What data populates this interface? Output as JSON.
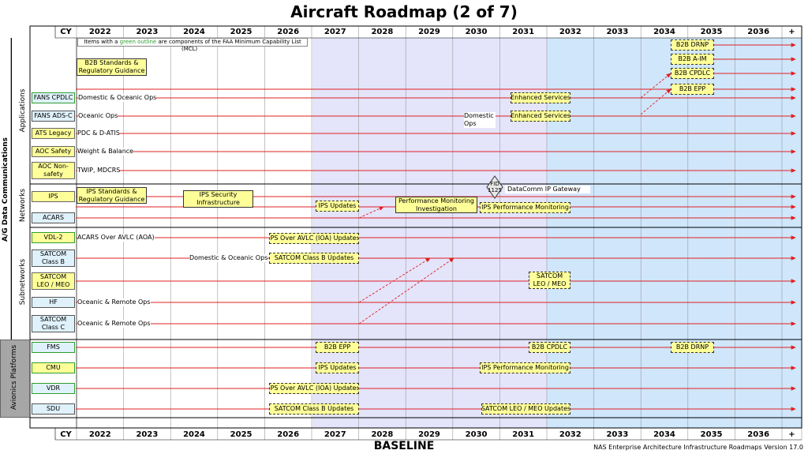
{
  "title": "Aircraft Roadmap (2 of 7)",
  "footer": {
    "baseline": "BASELINE",
    "version": "NAS Enterprise Architecture Infrastructure Roadmaps Version 17.0"
  },
  "header_label": "CY",
  "years": [
    "2022",
    "2023",
    "2024",
    "2025",
    "2026",
    "2027",
    "2028",
    "2029",
    "2030",
    "2031",
    "2032",
    "2033",
    "2034",
    "2035",
    "2036",
    "+"
  ],
  "legend": {
    "prefix": "Items with a ",
    "highlight": "green outline",
    "suffix": " are components of the FAA Minimum Capability List",
    "second": "(MCL)",
    "highlight_color": "#2e9e2e"
  },
  "vertical_labels": {
    "outer": "A/G Data Communications",
    "applications": "Applications",
    "networks": "Networks",
    "subnetworks": "Subnetworks",
    "avionics": "Avionics Platforms"
  },
  "rows": [
    {
      "id": "fans-cpdlc",
      "label": "FANS CPDLC",
      "style": "lbl-bg",
      "desc": "Domestic & Oceanic Ops"
    },
    {
      "id": "fans-adsc",
      "label": "FANS ADS-C",
      "style": "lbl-b",
      "desc": "Oceanic Ops"
    },
    {
      "id": "ats-legacy",
      "label": "ATS Legacy",
      "style": "lbl-y",
      "desc": "PDC & D-ATIS"
    },
    {
      "id": "aoc-safety",
      "label": "AOC Safety",
      "style": "lbl-y",
      "desc": "Weight & Balance"
    },
    {
      "id": "aoc-nonsafety",
      "label": "AOC Non-safety",
      "style": "lbl-y",
      "desc": "TWIP, MDCRS"
    },
    {
      "id": "ips",
      "label": "IPS",
      "style": "lbl-y",
      "desc": ""
    },
    {
      "id": "acars",
      "label": "ACARS",
      "style": "lbl-b",
      "desc": ""
    },
    {
      "id": "vdl2",
      "label": "VDL-2",
      "style": "lbl-g",
      "desc": "ACARS Over AVLC (AOA)"
    },
    {
      "id": "satcom-b",
      "label": "SATCOM Class B",
      "style": "lbl-b",
      "desc": "Domestic & Oceanic Ops"
    },
    {
      "id": "satcom-leo",
      "label": "SATCOM LEO / MEO",
      "style": "lbl-y",
      "desc": ""
    },
    {
      "id": "hf",
      "label": "HF",
      "style": "lbl-b",
      "desc": "Oceanic & Remote Ops"
    },
    {
      "id": "satcom-c",
      "label": "SATCOM Class C",
      "style": "lbl-b",
      "desc": "Oceanic & Remote Ops"
    },
    {
      "id": "fms",
      "label": "FMS",
      "style": "lbl-bg",
      "desc": ""
    },
    {
      "id": "cmu",
      "label": "CMU",
      "style": "lbl-g",
      "desc": ""
    },
    {
      "id": "vdr",
      "label": "VDR",
      "style": "lbl-bg",
      "desc": ""
    },
    {
      "id": "sdu",
      "label": "SDU",
      "style": "lbl-b",
      "desc": ""
    }
  ],
  "items": {
    "b2b_standards": "B2B Standards & Regulatory Guidance",
    "ips_standards": "IPS Standards & Regulatory Guidance",
    "ips_security": "IPS Security Infrastructure",
    "b2b_drnp": "B2B DRNP",
    "b2b_aim": "B2B A-IM",
    "b2b_cpdlc": "B2B CPDLC",
    "b2b_epp": "B2B EPP",
    "enhanced_1": "Enhanced Services",
    "enhanced_2": "Enhanced Services",
    "domestic_ops": "Domestic Ops",
    "fid": "FID 1125",
    "datacomm_gateway": "DataComm IP Gateway",
    "ips_updates_net": "IPS Updates",
    "perf_investigation": "Performance Monitoring Investigation",
    "ips_perf_net": "IPS Performance Monitoring",
    "ips_avlc_sub": "IPS Over AVLC (IOA) Updates",
    "satcom_b_updates_sub": "SATCOM Class B Updates",
    "satcom_leo_sub": "SATCOM LEO / MEO",
    "fms_b2b_epp": "B2B EPP",
    "fms_b2b_cpdlc": "B2B CPDLC",
    "fms_b2b_drnp": "B2B DRNP",
    "cmu_ips_updates": "IPS Updates",
    "cmu_ips_perf": "IPS Performance Monitoring",
    "vdr_ips_avlc": "IPS Over AVLC (IOA) Updates",
    "sdu_satcom_b": "SATCOM Class B Updates",
    "sdu_satcom_leo": "SATCOM LEO / MEO Updates"
  },
  "colors": {
    "arrow": "#e02020",
    "band_mid": "#e4e4fb",
    "band_far": "#cfe6fb",
    "avionics_bg": "#a6a6a6"
  }
}
